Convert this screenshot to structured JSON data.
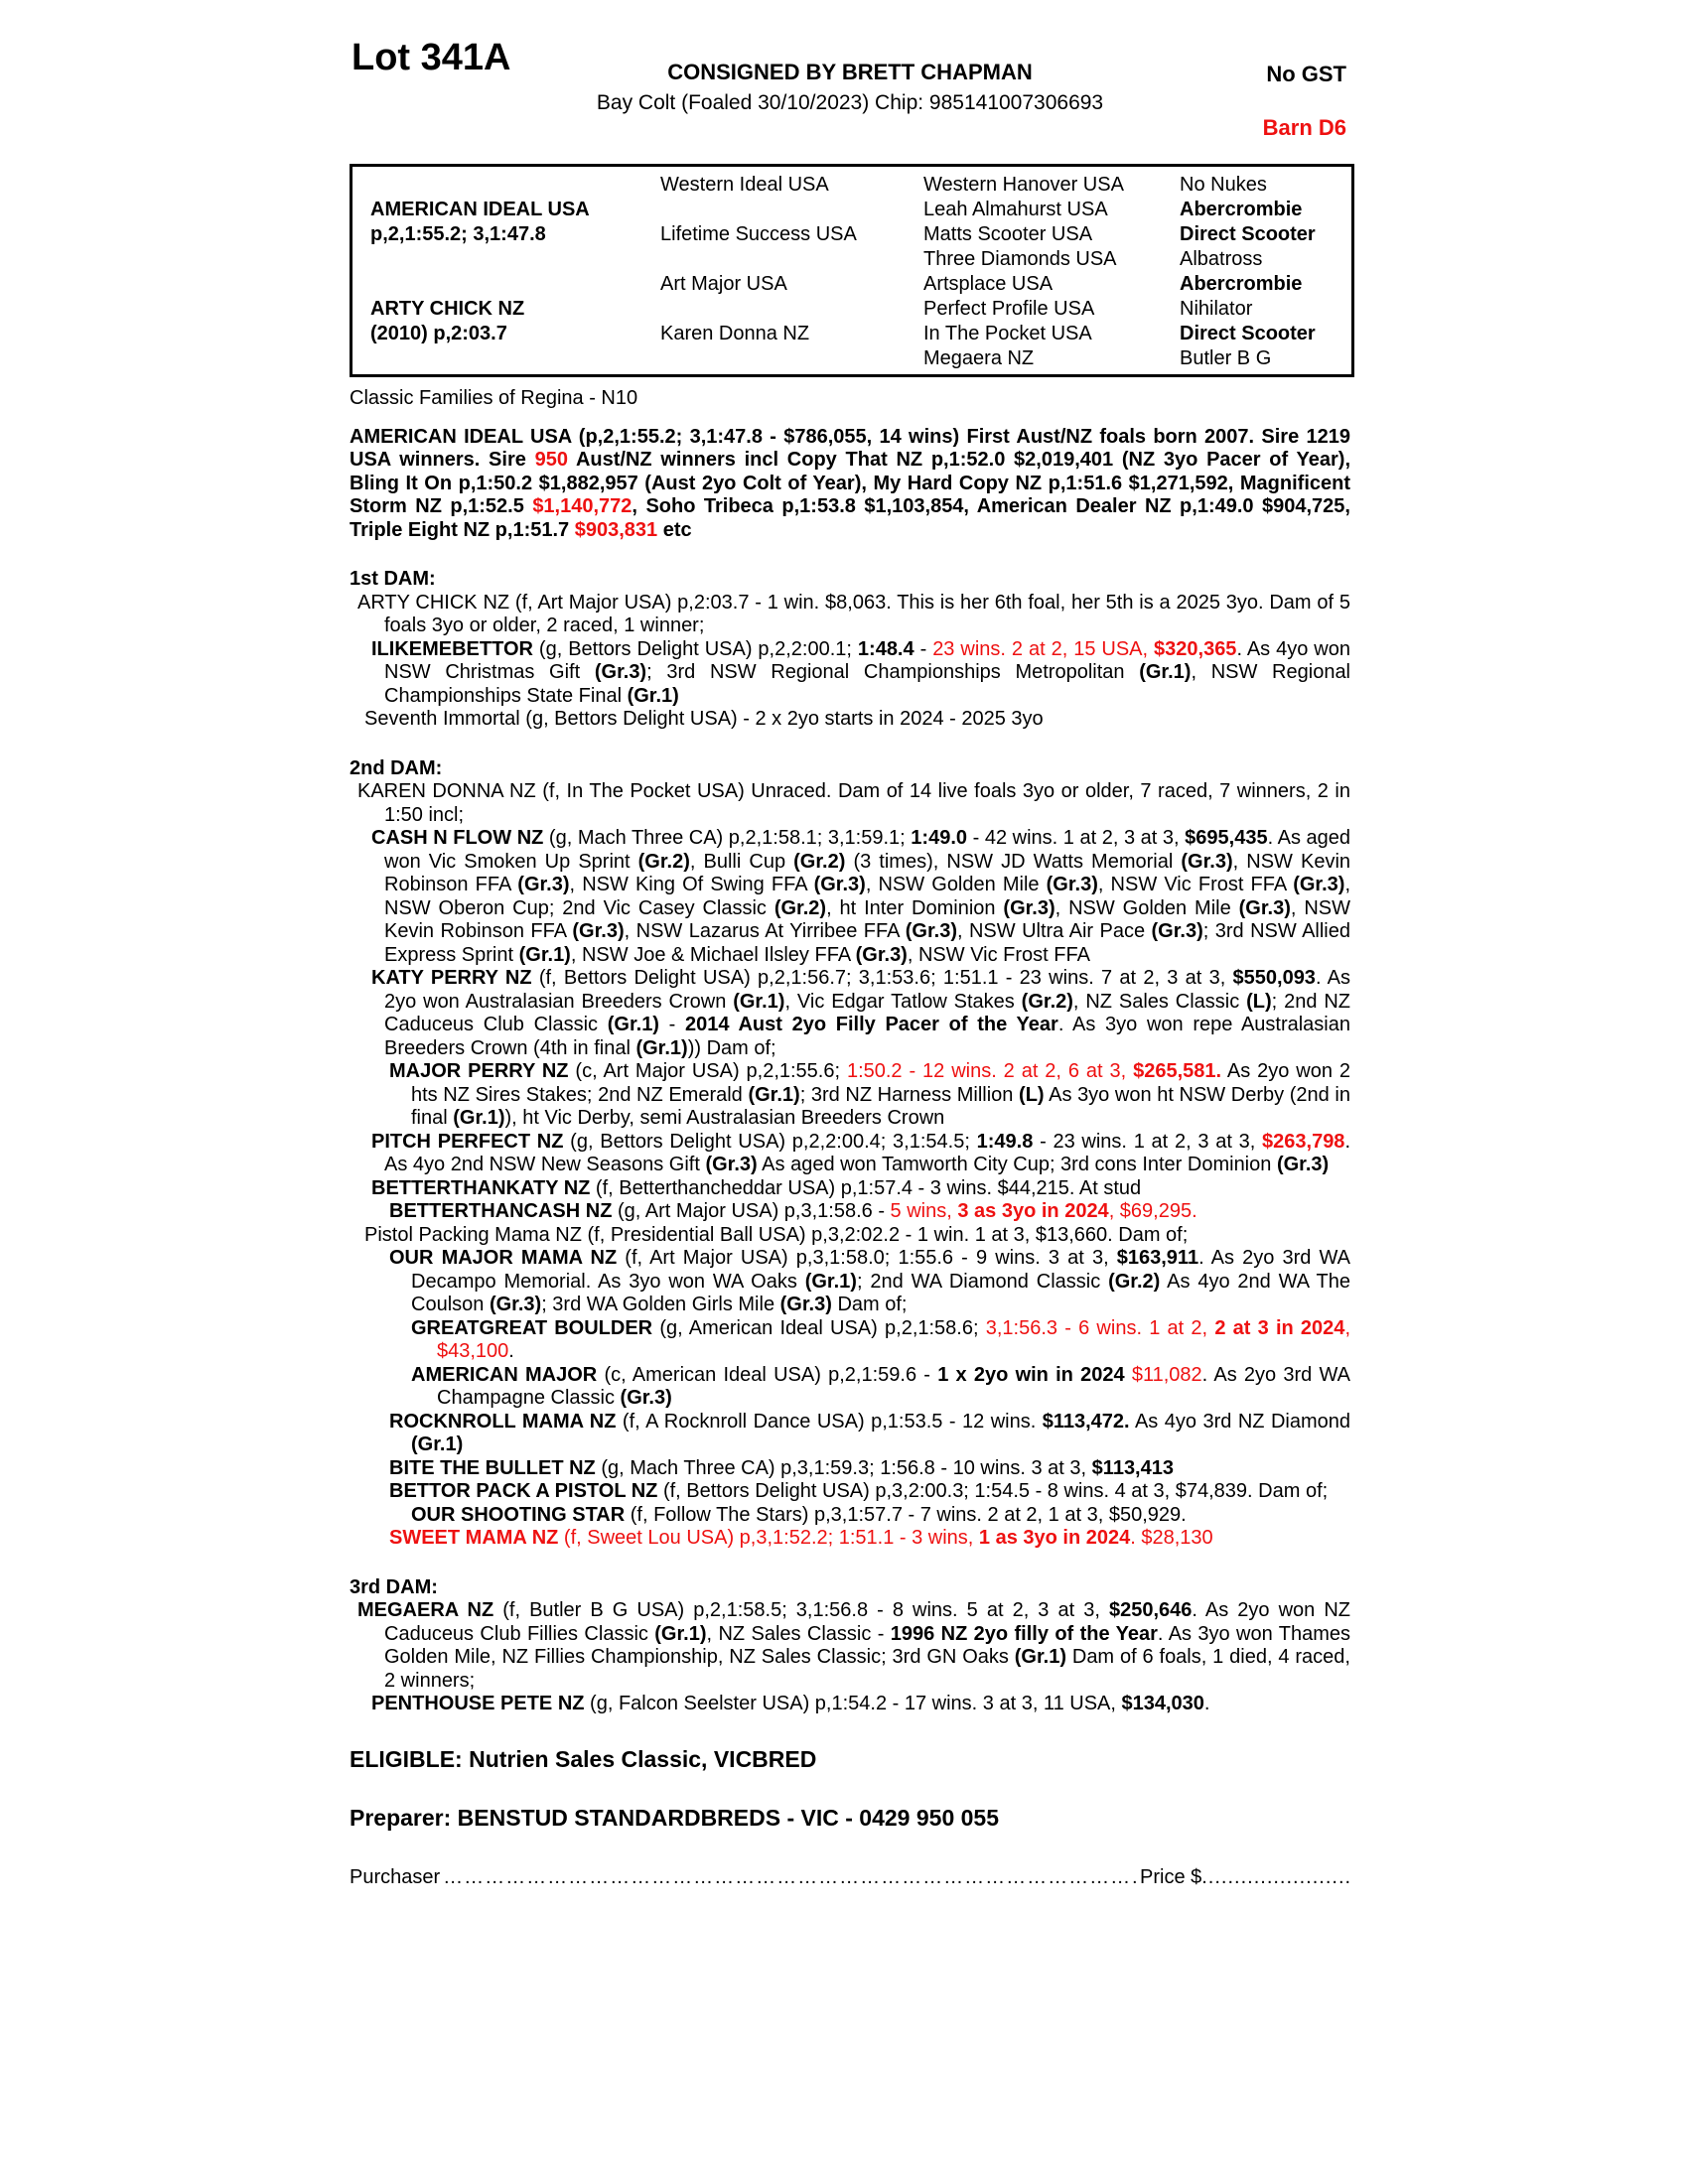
{
  "header": {
    "lot": "Lot 341A",
    "consigned": "CONSIGNED BY BRETT CHAPMAN",
    "details": "Bay Colt (Foaled 30/10/2023) Chip: 985141007306693",
    "no_gst": "No GST",
    "barn": "Barn D6"
  },
  "accent_red": "#ee1111",
  "pedigree": {
    "col1": [
      "AMERICAN IDEAL USA",
      "p,2,1:55.2; 3,1:47.8",
      "ARTY CHICK NZ",
      "(2010) p,2:03.7"
    ],
    "col2": [
      "Western Ideal USA",
      "Lifetime Success USA",
      "Art Major USA",
      "Karen Donna NZ"
    ],
    "col3": [
      "Western Hanover USA",
      "Leah Almahurst USA",
      "Matts Scooter USA",
      "Three Diamonds USA",
      "Artsplace USA",
      "Perfect Profile USA",
      "In The Pocket USA",
      "Megaera NZ"
    ],
    "col4": [
      "No Nukes",
      "Abercrombie",
      "Direct Scooter",
      "Albatross",
      "Abercrombie",
      "Nihilator",
      "Direct Scooter",
      "Butler B G"
    ]
  },
  "family_line": "Classic Families of Regina - N10",
  "sire_para": [
    {
      "t": "AMERICAN IDEAL USA (p,2,1:55.2; 3,1:47.8 - $786,055, 14 wins) First Aust/NZ foals born 2007. Sire 1219 USA winners. Sire ",
      "s": "b"
    },
    {
      "t": "950",
      "s": "br"
    },
    {
      "t": " Aust/NZ winners incl Copy That NZ p,1:52.0 $2,019,401 (NZ 3yo Pacer of Year), Bling It On p,1:50.2 $1,882,957 (Aust 2yo Colt of Year), My Hard Copy NZ p,1:51.6 $1,271,592, Magnificent Storm NZ p,1:52.5 ",
      "s": "b"
    },
    {
      "t": "$1,140,772",
      "s": "br"
    },
    {
      "t": ", Soho Tribeca p,1:53.8 $1,103,854, American Dealer NZ p,1:49.0 $904,725, Triple Eight NZ p,1:51.7 ",
      "s": "b"
    },
    {
      "t": "$903,831",
      "s": "br"
    },
    {
      "t": " etc",
      "s": "b"
    }
  ],
  "dams": [
    {
      "heading": "1st DAM:",
      "paras": [
        {
          "seg": [
            {
              "t": "ARTY CHICK NZ (f, Art Major USA) p,2:03.7 - 1 win. $8,063. This is her 6th foal, her 5th is a 2025 3yo. Dam of 5 foals 3yo or older, 2 raced, 1 winner;"
            }
          ]
        },
        {
          "seg": [
            {
              "t": "ILIKEMEBETTOR",
              "s": "b"
            },
            {
              "t": " (g, Bettors Delight USA) p,2,2:00.1; "
            },
            {
              "t": "1:48.4",
              "s": "b"
            },
            {
              "t": " - "
            },
            {
              "t": "23 wins. 2 at 2, 15 USA, ",
              "s": "r"
            },
            {
              "t": "$320,365",
              "s": "br"
            },
            {
              "t": ". As 4yo won NSW Christmas Gift "
            },
            {
              "t": "(Gr.3)",
              "s": "b"
            },
            {
              "t": "; 3rd NSW Regional Championships Metropolitan "
            },
            {
              "t": "(Gr.1)",
              "s": "b"
            },
            {
              "t": ", NSW Regional Championships State Final "
            },
            {
              "t": "(Gr.1)",
              "s": "b"
            }
          ]
        },
        {
          "seg": [
            {
              "t": "Seventh Immortal (g, Bettors Delight USA) - 2 x 2yo starts in 2024 - 2025 3yo"
            }
          ]
        }
      ]
    },
    {
      "heading": "2nd DAM:",
      "paras": [
        {
          "seg": [
            {
              "t": "KAREN DONNA NZ (f, In The Pocket USA) Unraced. Dam of 14 live foals 3yo or older, 7 raced, 7 winners, 2 in 1:50 incl;"
            }
          ]
        },
        {
          "seg": [
            {
              "t": "CASH N FLOW NZ",
              "s": "b"
            },
            {
              "t": " (g, Mach Three CA) p,2,1:58.1; 3,1:59.1; "
            },
            {
              "t": "1:49.0",
              "s": "b"
            },
            {
              "t": " - 42 wins. 1 at 2, 3 at 3, "
            },
            {
              "t": "$695,435",
              "s": "b"
            },
            {
              "t": ". As aged won Vic Smoken Up Sprint "
            },
            {
              "t": "(Gr.2)",
              "s": "b"
            },
            {
              "t": ", Bulli Cup "
            },
            {
              "t": "(Gr.2)",
              "s": "b"
            },
            {
              "t": " (3 times), NSW JD Watts Memorial "
            },
            {
              "t": "(Gr.3)",
              "s": "b"
            },
            {
              "t": ", NSW Kevin Robinson FFA "
            },
            {
              "t": "(Gr.3)",
              "s": "b"
            },
            {
              "t": ", NSW King Of Swing FFA "
            },
            {
              "t": "(Gr.3)",
              "s": "b"
            },
            {
              "t": ", NSW Golden Mile "
            },
            {
              "t": "(Gr.3)",
              "s": "b"
            },
            {
              "t": ", NSW Vic Frost FFA "
            },
            {
              "t": "(Gr.3)",
              "s": "b"
            },
            {
              "t": ", NSW Oberon Cup; 2nd Vic Casey Classic "
            },
            {
              "t": "(Gr.2)",
              "s": "b"
            },
            {
              "t": ", ht Inter Dominion "
            },
            {
              "t": "(Gr.3)",
              "s": "b"
            },
            {
              "t": ", NSW Golden Mile "
            },
            {
              "t": "(Gr.3)",
              "s": "b"
            },
            {
              "t": ", NSW Kevin Robinson FFA "
            },
            {
              "t": "(Gr.3)",
              "s": "b"
            },
            {
              "t": ", NSW Lazarus At Yirribee FFA "
            },
            {
              "t": "(Gr.3)",
              "s": "b"
            },
            {
              "t": ", NSW Ultra Air Pace "
            },
            {
              "t": "(Gr.3)",
              "s": "b"
            },
            {
              "t": "; 3rd NSW Allied Express Sprint "
            },
            {
              "t": "(Gr.1)",
              "s": "b"
            },
            {
              "t": ", NSW Joe & Michael Ilsley FFA "
            },
            {
              "t": "(Gr.3)",
              "s": "b"
            },
            {
              "t": ", NSW Vic Frost FFA"
            }
          ]
        },
        {
          "seg": [
            {
              "t": "KATY PERRY NZ",
              "s": "b"
            },
            {
              "t": " (f, Bettors Delight USA) p,2,1:56.7; 3,1:53.6; 1:51.1 - 23 wins. 7 at 2, 3 at 3, "
            },
            {
              "t": "$550,093",
              "s": "b"
            },
            {
              "t": ". As 2yo won Australasian Breeders Crown "
            },
            {
              "t": "(Gr.1)",
              "s": "b"
            },
            {
              "t": ", Vic Edgar Tatlow Stakes "
            },
            {
              "t": "(Gr.2)",
              "s": "b"
            },
            {
              "t": ", NZ Sales Classic "
            },
            {
              "t": "(L)",
              "s": "b"
            },
            {
              "t": "; 2nd NZ Caduceus Club Classic "
            },
            {
              "t": "(Gr.1)",
              "s": "b"
            },
            {
              "t": " - "
            },
            {
              "t": "2014 Aust 2yo Filly Pacer of the Year",
              "s": "b"
            },
            {
              "t": ". As 3yo won repe Australasian Breeders Crown (4th in final "
            },
            {
              "t": "(Gr.1)",
              "s": "b"
            },
            {
              "t": ")) Dam of;"
            }
          ]
        },
        {
          "seg": [
            {
              "t": "MAJOR PERRY NZ",
              "s": "b"
            },
            {
              "t": " (c, Art Major USA) p,2,1:55.6; "
            },
            {
              "t": "1:50.2 - 12 wins. 2 at 2, 6 at 3, ",
              "s": "r"
            },
            {
              "t": "$265,581.",
              "s": "br"
            },
            {
              "t": " As 2yo won 2 hts NZ Sires Stakes; 2nd NZ Emerald "
            },
            {
              "t": "(Gr.1)",
              "s": "b"
            },
            {
              "t": "; 3rd NZ Harness Million "
            },
            {
              "t": "(L)",
              "s": "b"
            },
            {
              "t": " As 3yo won ht NSW Derby (2nd in final "
            },
            {
              "t": "(Gr.1)",
              "s": "b"
            },
            {
              "t": "), ht Vic Derby, semi Australasian Breeders Crown"
            }
          ]
        },
        {
          "seg": [
            {
              "t": "PITCH PERFECT NZ",
              "s": "b"
            },
            {
              "t": " (g, Bettors Delight USA) p,2,2:00.4; 3,1:54.5; "
            },
            {
              "t": "1:49.8",
              "s": "b"
            },
            {
              "t": " - 23 wins. 1 at 2, 3 at 3, "
            },
            {
              "t": "$263,798",
              "s": "br"
            },
            {
              "t": ". As 4yo 2nd NSW New Seasons Gift "
            },
            {
              "t": "(Gr.3)",
              "s": "b"
            },
            {
              "t": " As aged won Tamworth City Cup; 3rd cons Inter Dominion "
            },
            {
              "t": "(Gr.3)",
              "s": "b"
            }
          ]
        },
        {
          "seg": [
            {
              "t": "BETTERTHANKATY NZ",
              "s": "b"
            },
            {
              "t": " (f, Betterthancheddar USA) p,1:57.4 - 3 wins. $44,215. At stud"
            }
          ]
        },
        {
          "seg": [
            {
              "t": "BETTERTHANCASH NZ",
              "s": "b"
            },
            {
              "t": " (g, Art Major USA) p,3,1:58.6 - "
            },
            {
              "t": "5 wins, ",
              "s": "r"
            },
            {
              "t": "3 as 3yo in 2024",
              "s": "br"
            },
            {
              "t": ", $69,295.",
              "s": "r"
            }
          ]
        },
        {
          "seg": [
            {
              "t": "Pistol Packing Mama NZ (f, Presidential Ball USA) p,3,2:02.2 - 1 win. 1 at 3, $13,660. Dam of;"
            }
          ]
        },
        {
          "seg": [
            {
              "t": "OUR MAJOR MAMA NZ",
              "s": "b"
            },
            {
              "t": " (f, Art Major USA) p,3,1:58.0; 1:55.6 - 9 wins. 3 at 3, "
            },
            {
              "t": "$163,911",
              "s": "b"
            },
            {
              "t": ". As 2yo 3rd WA Decampo Memorial. As 3yo won WA Oaks "
            },
            {
              "t": "(Gr.1)",
              "s": "b"
            },
            {
              "t": "; 2nd WA Diamond Classic "
            },
            {
              "t": "(Gr.2)",
              "s": "b"
            },
            {
              "t": " As 4yo 2nd WA The Coulson "
            },
            {
              "t": "(Gr.3)",
              "s": "b"
            },
            {
              "t": "; 3rd WA Golden Girls Mile "
            },
            {
              "t": "(Gr.3)",
              "s": "b"
            },
            {
              "t": " Dam of;"
            }
          ]
        },
        {
          "seg": [
            {
              "t": "GREATGREAT BOULDER",
              "s": "b"
            },
            {
              "t": " (g, American Ideal USA) p,2,1:58.6; "
            },
            {
              "t": "3,1:56.3 - 6 wins. 1 at 2, ",
              "s": "r"
            },
            {
              "t": "2 at 3 in 2024",
              "s": "br"
            },
            {
              "t": ", $43,100",
              "s": "r"
            },
            {
              "t": "."
            }
          ]
        },
        {
          "seg": [
            {
              "t": "AMERICAN MAJOR",
              "s": "b"
            },
            {
              "t": " (c, American Ideal USA) p,2,1:59.6 - "
            },
            {
              "t": "1 x 2yo win in 2024",
              "s": "b"
            },
            {
              "t": " "
            },
            {
              "t": "$11,082",
              "s": "r"
            },
            {
              "t": ". As 2yo 3rd WA Champagne Classic "
            },
            {
              "t": "(Gr.3)",
              "s": "b"
            }
          ]
        },
        {
          "seg": [
            {
              "t": "ROCKNROLL MAMA NZ",
              "s": "b"
            },
            {
              "t": " (f, A Rocknroll Dance USA) p,1:53.5 - 12 wins. "
            },
            {
              "t": "$113,472.",
              "s": "b"
            },
            {
              "t": " As 4yo 3rd NZ Diamond "
            },
            {
              "t": "(Gr.1)",
              "s": "b"
            }
          ]
        },
        {
          "seg": [
            {
              "t": "BITE THE BULLET NZ",
              "s": "b"
            },
            {
              "t": " (g, Mach Three CA) p,3,1:59.3; 1:56.8 - 10 wins. 3 at 3, "
            },
            {
              "t": "$113,413",
              "s": "b"
            }
          ]
        },
        {
          "seg": [
            {
              "t": "BETTOR PACK A PISTOL NZ",
              "s": "b"
            },
            {
              "t": " (f, Bettors Delight USA) p,3,2:00.3; 1:54.5 - 8 wins. 4 at 3, $74,839. Dam of;"
            }
          ]
        },
        {
          "seg": [
            {
              "t": "OUR SHOOTING STAR",
              "s": "b"
            },
            {
              "t": " (f, Follow The Stars) p,3,1:57.7 - 7 wins. 2 at 2, 1 at 3, $50,929."
            }
          ]
        },
        {
          "seg": [
            {
              "t": "SWEET MAMA NZ",
              "s": "br"
            },
            {
              "t": " (f, Sweet Lou USA) p,3,1:52.2; 1:51.1 - 3 wins, ",
              "s": "r"
            },
            {
              "t": "1 as 3yo in 2024",
              "s": "br"
            },
            {
              "t": ". $28,130",
              "s": "r"
            }
          ]
        }
      ]
    },
    {
      "heading": "3rd DAM:",
      "paras": [
        {
          "seg": [
            {
              "t": "MEGAERA NZ",
              "s": "b"
            },
            {
              "t": " (f, Butler B G USA) p,2,1:58.5; 3,1:56.8 - 8 wins. 5 at 2, 3 at 3, "
            },
            {
              "t": "$250,646",
              "s": "b"
            },
            {
              "t": ". As 2yo won NZ Caduceus Club Fillies Classic "
            },
            {
              "t": "(Gr.1)",
              "s": "b"
            },
            {
              "t": ", NZ Sales Classic - "
            },
            {
              "t": "1996 NZ 2yo filly of the Year",
              "s": "b"
            },
            {
              "t": ". As 3yo won Thames Golden Mile, NZ Fillies Championship, NZ Sales Classic; 3rd GN Oaks "
            },
            {
              "t": "(Gr.1)",
              "s": "b"
            },
            {
              "t": " Dam of 6 foals, 1 died, 4 raced, 2 winners;"
            }
          ]
        },
        {
          "seg": [
            {
              "t": "PENTHOUSE PETE NZ",
              "s": "b"
            },
            {
              "t": " (g, Falcon Seelster USA) p,1:54.2 - 17 wins. 3 at 3, 11 USA, "
            },
            {
              "t": "$134,030",
              "s": "b"
            },
            {
              "t": "."
            }
          ]
        }
      ]
    }
  ],
  "footer": {
    "eligible": "ELIGIBLE: Nutrien Sales Classic, VICBRED",
    "preparer": "Preparer: BENSTUD STANDARDBREDS - VIC - 0429 950 055",
    "purchaser_label": "Purchaser",
    "price_label": "Price $",
    "leader1": "……………………………………………………………………………………………………………………",
    "leader2": "............................................................................."
  }
}
